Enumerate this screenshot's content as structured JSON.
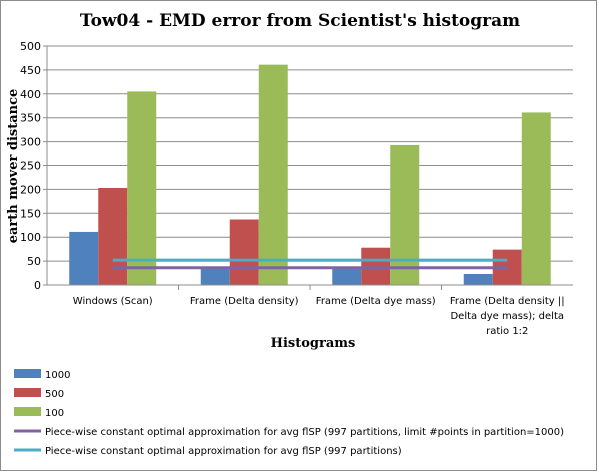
{
  "chart_data": {
    "type": "bar",
    "title": "Tow04 - EMD error from Scientist's histogram",
    "xlabel": "Histograms",
    "ylabel": "earth mover distance",
    "ylim": [
      0,
      500
    ],
    "yticks": [
      0,
      50,
      100,
      150,
      200,
      250,
      300,
      350,
      400,
      450,
      500
    ],
    "grid": true,
    "legend_position": "bottom",
    "categories": [
      [
        "Windows (Scan)"
      ],
      [
        "Frame (Delta density)"
      ],
      [
        "Frame (Delta dye mass)"
      ],
      [
        "Frame (Delta density ||",
        "Delta dye mass); delta",
        "ratio 1:2"
      ]
    ],
    "series": [
      {
        "name": "1000",
        "color": "#4f81bd",
        "values": [
          111,
          35,
          35,
          23
        ]
      },
      {
        "name": "500",
        "color": "#c0504d",
        "values": [
          203,
          137,
          78,
          74
        ]
      },
      {
        "name": "100",
        "color": "#9bbb59",
        "values": [
          405,
          461,
          293,
          361
        ]
      }
    ],
    "lines": [
      {
        "name": "Piece-wise constant optimal approximation for avg flSP (997 partitions, limit #points in partition=1000)",
        "color": "#8064a2",
        "value": 36
      },
      {
        "name": "Piece-wise constant optimal approximation for avg flSP (997 partitions)",
        "color": "#4bacc6",
        "value": 52
      }
    ]
  }
}
